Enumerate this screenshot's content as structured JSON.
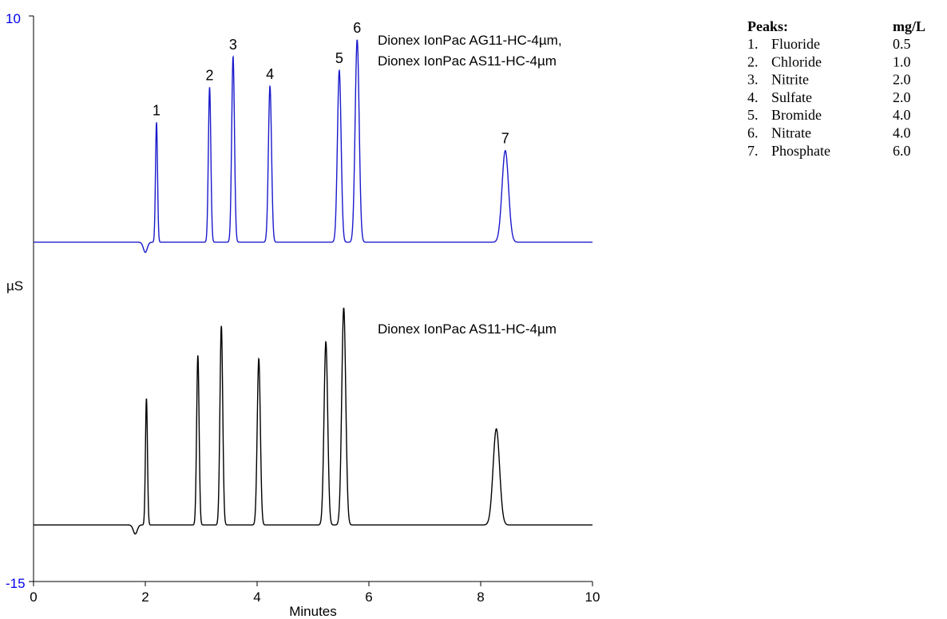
{
  "chart_data": {
    "type": "line",
    "title": "",
    "xlabel": "Minutes",
    "ylabel": "µS",
    "xlim": [
      0,
      10
    ],
    "ylim": [
      -15,
      10
    ],
    "x_ticks": [
      "0",
      "2",
      "4",
      "6",
      "8",
      "10"
    ],
    "y_ticks": [
      "10",
      "-15"
    ],
    "grid": false,
    "legend": {
      "headers": [
        "Peaks:",
        "mg/L"
      ],
      "rows": [
        {
          "num": "1.",
          "name": "Fluoride",
          "conc": "0.5"
        },
        {
          "num": "2.",
          "name": "Chloride",
          "conc": "1.0"
        },
        {
          "num": "3.",
          "name": "Nitrite",
          "conc": "2.0"
        },
        {
          "num": "4.",
          "name": "Sulfate",
          "conc": "2.0"
        },
        {
          "num": "5.",
          "name": "Bromide",
          "conc": "4.0"
        },
        {
          "num": "6.",
          "name": "Nitrate",
          "conc": "4.0"
        },
        {
          "num": "7.",
          "name": "Phosphate",
          "conc": "6.0"
        }
      ]
    },
    "series": [
      {
        "label_lines": [
          "Dionex IonPac AG11-HC-4µm,",
          "Dionex IonPac AS11-HC-4µm"
        ],
        "color": "#1a1acc",
        "baseline": 0,
        "dip": {
          "t": 2.0,
          "h": -0.45,
          "w": 0.035
        },
        "peaks": [
          {
            "label": "1",
            "t": 2.2,
            "h": 5.3,
            "w": 0.018
          },
          {
            "label": "2",
            "t": 3.15,
            "h": 6.85,
            "w": 0.022
          },
          {
            "label": "3",
            "t": 3.57,
            "h": 8.2,
            "w": 0.025
          },
          {
            "label": "4",
            "t": 4.23,
            "h": 6.9,
            "w": 0.028
          },
          {
            "label": "5",
            "t": 5.47,
            "h": 7.6,
            "w": 0.033
          },
          {
            "label": "6",
            "t": 5.79,
            "h": 8.95,
            "w": 0.036
          },
          {
            "label": "7",
            "t": 8.44,
            "h": 4.05,
            "w": 0.058
          }
        ]
      },
      {
        "label_lines": [
          "Dionex IonPac AS11-HC-4µm"
        ],
        "color": "#000000",
        "baseline": -12.5,
        "dip": {
          "t": 1.82,
          "h": -0.4,
          "w": 0.035
        },
        "peaks": [
          {
            "t": 2.02,
            "h": 5.6,
            "w": 0.018
          },
          {
            "t": 2.94,
            "h": 7.5,
            "w": 0.022
          },
          {
            "t": 3.36,
            "h": 8.8,
            "w": 0.025
          },
          {
            "t": 4.03,
            "h": 7.35,
            "w": 0.028
          },
          {
            "t": 5.23,
            "h": 8.1,
            "w": 0.033
          },
          {
            "t": 5.55,
            "h": 9.6,
            "w": 0.036
          },
          {
            "t": 8.28,
            "h": 4.25,
            "w": 0.058
          }
        ]
      }
    ]
  }
}
